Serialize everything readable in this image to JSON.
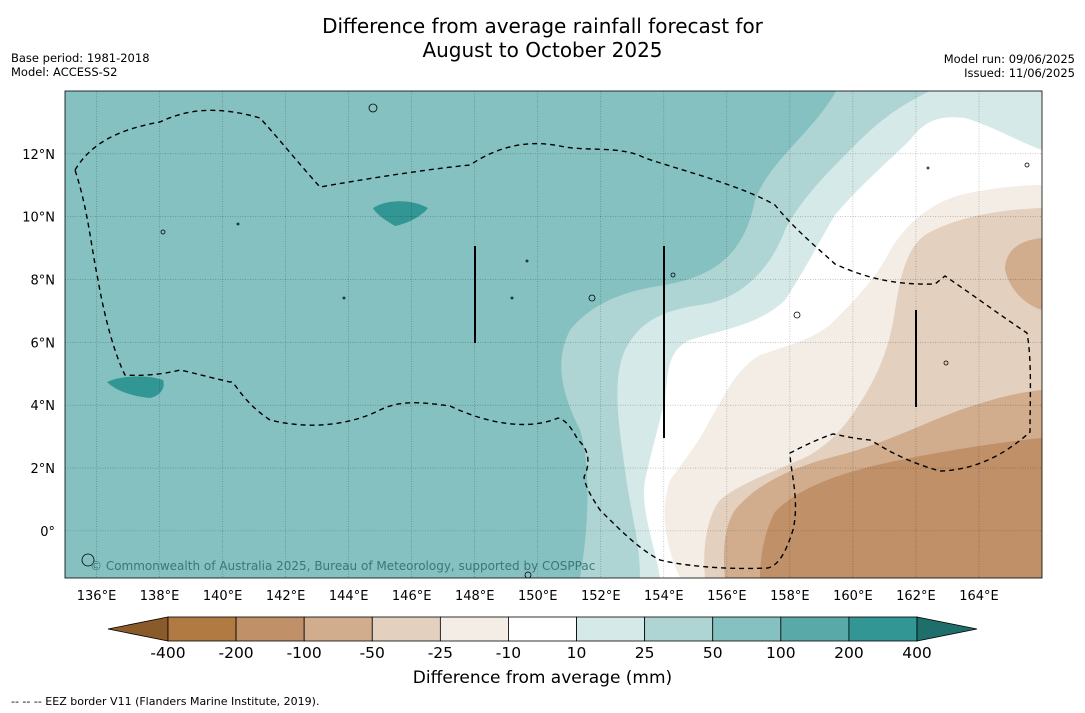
{
  "title_line1": "Difference from average rainfall forecast for",
  "title_line2": "August to October 2025",
  "meta_left": [
    "Base period: 1981-2018",
    "Model: ACCESS-S2"
  ],
  "meta_right": [
    "Model run: 09/06/2025",
    "Issued: 11/06/2025"
  ],
  "copyright": "© Commonwealth of Australia 2025, Bureau of Meteorology, supported by COSPPac",
  "map": {
    "lon_range": [
      135,
      166
    ],
    "lat_range": [
      -1.5,
      14
    ],
    "lon_ticks": [
      "136°E",
      "138°E",
      "140°E",
      "142°E",
      "144°E",
      "146°E",
      "148°E",
      "150°E",
      "152°E",
      "154°E",
      "156°E",
      "158°E",
      "160°E",
      "162°E",
      "164°E"
    ],
    "lon_values": [
      136,
      138,
      140,
      142,
      144,
      146,
      148,
      150,
      152,
      154,
      156,
      158,
      160,
      162,
      164
    ],
    "lat_ticks": [
      "12°N",
      "10°N",
      "8°N",
      "6°N",
      "4°N",
      "2°N",
      "0°"
    ],
    "lat_values": [
      12,
      10,
      8,
      6,
      4,
      2,
      0
    ],
    "grid": true
  },
  "legend": {
    "title": "Difference from average (mm)",
    "labels": [
      "-400",
      "-200",
      "-100",
      "-50",
      "-25",
      "-10",
      "10",
      "25",
      "50",
      "100",
      "200",
      "400"
    ],
    "colors": [
      "#8a5a2b",
      "#b07a42",
      "#c09068",
      "#d1ad8d",
      "#e3d0be",
      "#f3ede6",
      "#ffffff",
      "#d5e9e8",
      "#aed5d3",
      "#85c1c0",
      "#5aa9a9",
      "#329794",
      "#1e6f6c"
    ],
    "extend": "both"
  },
  "footnote_legend": "-- -- -- EEZ border V11 (Flanders Marine Institute, 2019)."
}
